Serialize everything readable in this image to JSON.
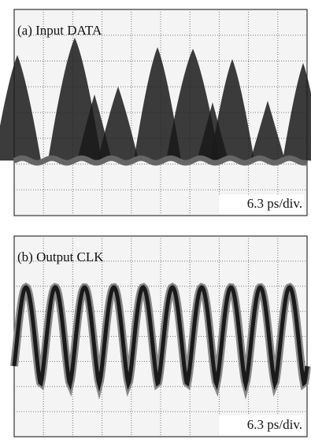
{
  "panels": [
    {
      "label": "(a) Input DATA",
      "scale": "6.3 ps/div."
    },
    {
      "label": "(b) Output CLK",
      "scale": "6.3 ps/div."
    }
  ]
}
